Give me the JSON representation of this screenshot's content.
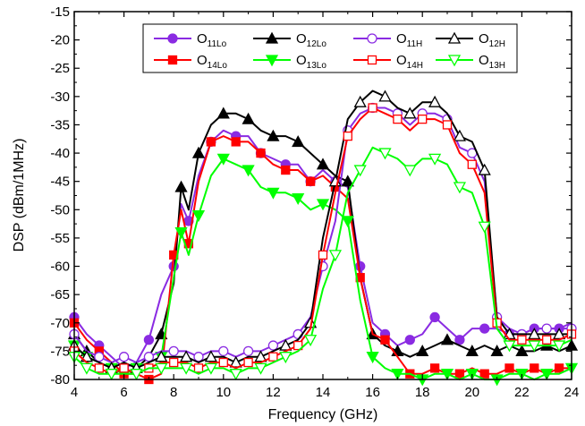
{
  "chart_data": {
    "type": "line",
    "xlabel": "Frequency (GHz)",
    "ylabel": "DSP (dBm/1MHz)",
    "xlim": [
      4,
      24
    ],
    "ylim": [
      -80,
      -15
    ],
    "xticks": [
      "4",
      "6",
      "8",
      "10",
      "12",
      "14",
      "16",
      "18",
      "20",
      "22",
      "24"
    ],
    "yticks": [
      "-15",
      "-20",
      "-25",
      "-30",
      "-35",
      "-40",
      "-45",
      "-50",
      "-55",
      "-60",
      "-65",
      "-70",
      "-75",
      "-80"
    ],
    "grid": false,
    "legend_position": "top-center",
    "series": [
      {
        "label_main": "O",
        "label_sub": "11Lo",
        "color": "#8a2be2",
        "marker": "circle",
        "filled": true,
        "x": [
          4,
          4.5,
          5,
          5.5,
          6,
          6.5,
          7,
          7.5,
          8,
          8.3,
          8.6,
          9,
          9.5,
          10,
          10.5,
          11,
          11.5,
          12,
          12.5,
          13,
          13.5,
          14,
          14.5,
          15,
          15.5,
          16,
          16.5,
          17,
          17.5,
          18,
          18.5,
          19,
          19.5,
          20,
          20.5,
          21,
          21.5,
          22,
          22.5,
          23,
          23.5,
          24
        ],
        "y": [
          -69,
          -72,
          -74,
          -76,
          -78,
          -77,
          -73,
          -65,
          -60,
          -49,
          -52,
          -44,
          -38,
          -36,
          -37,
          -37,
          -40,
          -41,
          -42,
          -42,
          -45,
          -43,
          -45,
          -46,
          -60,
          -70,
          -72,
          -74,
          -73,
          -72,
          -69,
          -71,
          -73,
          -71,
          -71,
          -71,
          -72,
          -72,
          -71,
          -71,
          -71,
          -70
        ]
      },
      {
        "label_main": "O",
        "label_sub": "12Lo",
        "color": "#000000",
        "marker": "triangle",
        "filled": true,
        "x": [
          4,
          4.5,
          5,
          5.5,
          6,
          6.5,
          7,
          7.5,
          8,
          8.3,
          8.6,
          9,
          9.5,
          10,
          10.5,
          11,
          11.5,
          12,
          12.5,
          13,
          13.5,
          14,
          14.5,
          15,
          15.5,
          16,
          16.5,
          17,
          17.5,
          18,
          18.5,
          19,
          19.5,
          20,
          20.5,
          21,
          21.5,
          22,
          22.5,
          23,
          23.5,
          24
        ],
        "y": [
          -72,
          -75,
          -77,
          -78,
          -79,
          -78,
          -76,
          -72,
          -63,
          -46,
          -50,
          -40,
          -35,
          -33,
          -33,
          -34,
          -36,
          -37,
          -37,
          -38,
          -40,
          -42,
          -44,
          -45,
          -62,
          -72,
          -74,
          -75,
          -76,
          -75,
          -74,
          -73,
          -74,
          -75,
          -74,
          -75,
          -74,
          -75,
          -75,
          -74,
          -75,
          -74
        ]
      },
      {
        "label_main": "O",
        "label_sub": "14Lo",
        "color": "#ff0000",
        "marker": "square",
        "filled": true,
        "x": [
          4,
          4.5,
          5,
          5.5,
          6,
          6.5,
          7,
          7.5,
          8,
          8.3,
          8.6,
          9,
          9.5,
          10,
          10.5,
          11,
          11.5,
          12,
          12.5,
          13,
          13.5,
          14,
          14.5,
          15,
          15.5,
          16,
          16.5,
          17,
          17.5,
          18,
          18.5,
          19,
          19.5,
          20,
          20.5,
          21,
          21.5,
          22,
          22.5,
          23,
          23.5,
          24
        ],
        "y": [
          -70,
          -73,
          -75,
          -77,
          -79,
          -79,
          -80,
          -79,
          -58,
          -50,
          -56,
          -45,
          -38,
          -37,
          -38,
          -38,
          -40,
          -42,
          -43,
          -43,
          -45,
          -44,
          -46,
          -48,
          -62,
          -72,
          -73,
          -76,
          -79,
          -79,
          -78,
          -79,
          -79,
          -78,
          -79,
          -79,
          -78,
          -79,
          -78,
          -79,
          -78,
          -78
        ]
      },
      {
        "label_main": "O",
        "label_sub": "13Lo",
        "color": "#00ff00",
        "marker": "triangle-down",
        "filled": true,
        "x": [
          4,
          4.5,
          5,
          5.5,
          6,
          6.5,
          7,
          7.5,
          8,
          8.3,
          8.6,
          9,
          9.5,
          10,
          10.5,
          11,
          11.5,
          12,
          12.5,
          13,
          13.5,
          14,
          14.5,
          15,
          15.5,
          16,
          16.5,
          17,
          17.5,
          18,
          18.5,
          19,
          19.5,
          20,
          20.5,
          21,
          21.5,
          22,
          22.5,
          23,
          23.5,
          24
        ],
        "y": [
          -74,
          -76,
          -77,
          -78,
          -79,
          -78,
          -77,
          -76,
          -62,
          -54,
          -58,
          -51,
          -44,
          -41,
          -42,
          -43,
          -46,
          -47,
          -47,
          -48,
          -50,
          -49,
          -50,
          -52,
          -66,
          -76,
          -78,
          -79,
          -79,
          -80,
          -79,
          -79,
          -80,
          -79,
          -80,
          -80,
          -79,
          -79,
          -80,
          -79,
          -79,
          -78
        ]
      },
      {
        "label_main": "O",
        "label_sub": "11H",
        "color": "#8a2be2",
        "marker": "circle",
        "filled": false,
        "x": [
          4,
          4.5,
          5,
          5.5,
          6,
          6.5,
          7,
          7.5,
          8,
          8.5,
          9,
          9.5,
          10,
          10.5,
          11,
          11.5,
          12,
          12.5,
          13,
          13.5,
          14,
          14.5,
          15,
          15.5,
          16,
          16.5,
          17,
          17.5,
          18,
          18.5,
          19,
          19.5,
          20,
          20.5,
          21,
          21.5,
          22,
          22.5,
          23,
          23.5,
          24
        ],
        "y": [
          -72,
          -75,
          -76,
          -77,
          -76,
          -77,
          -76,
          -75,
          -75,
          -75,
          -76,
          -75,
          -75,
          -76,
          -75,
          -75,
          -74,
          -73,
          -72,
          -69,
          -60,
          -52,
          -36,
          -33,
          -32,
          -32,
          -33,
          -35,
          -33,
          -33,
          -34,
          -39,
          -40,
          -45,
          -69,
          -71,
          -72,
          -71,
          -71,
          -71,
          -71
        ]
      },
      {
        "label_main": "O",
        "label_sub": "12H",
        "color": "#000000",
        "marker": "triangle",
        "filled": false,
        "x": [
          4,
          4.5,
          5,
          5.5,
          6,
          6.5,
          7,
          7.5,
          8,
          8.5,
          9,
          9.5,
          10,
          10.5,
          11,
          11.5,
          12,
          12.5,
          13,
          13.5,
          14,
          14.5,
          15,
          15.5,
          16,
          16.5,
          17,
          17.5,
          18,
          18.5,
          19,
          19.5,
          20,
          20.5,
          21,
          21.5,
          22,
          22.5,
          23,
          23.5,
          24
        ],
        "y": [
          -74,
          -76,
          -77,
          -78,
          -77,
          -78,
          -77,
          -76,
          -76,
          -76,
          -77,
          -76,
          -76,
          -77,
          -76,
          -76,
          -75,
          -74,
          -73,
          -70,
          -55,
          -45,
          -34,
          -31,
          -29,
          -30,
          -32,
          -33,
          -31,
          -31,
          -33,
          -37,
          -38,
          -43,
          -69,
          -72,
          -72,
          -72,
          -72,
          -72,
          -72
        ]
      },
      {
        "label_main": "O",
        "label_sub": "14H",
        "color": "#ff0000",
        "marker": "square",
        "filled": false,
        "x": [
          4,
          4.5,
          5,
          5.5,
          6,
          6.5,
          7,
          7.5,
          8,
          8.5,
          9,
          9.5,
          10,
          10.5,
          11,
          11.5,
          12,
          12.5,
          13,
          13.5,
          14,
          14.5,
          15,
          15.5,
          16,
          16.5,
          17,
          17.5,
          18,
          18.5,
          19,
          19.5,
          20,
          20.5,
          21,
          21.5,
          22,
          22.5,
          23,
          23.5,
          24
        ],
        "y": [
          -75,
          -77,
          -78,
          -79,
          -78,
          -79,
          -78,
          -77,
          -77,
          -77,
          -78,
          -77,
          -77,
          -78,
          -77,
          -77,
          -76,
          -75,
          -74,
          -71,
          -58,
          -47,
          -37,
          -34,
          -32,
          -33,
          -34,
          -36,
          -34,
          -34,
          -35,
          -40,
          -42,
          -47,
          -70,
          -73,
          -73,
          -73,
          -73,
          -73,
          -72
        ]
      },
      {
        "label_main": "O",
        "label_sub": "13H",
        "color": "#00ff00",
        "marker": "triangle-down",
        "filled": false,
        "x": [
          4,
          4.5,
          5,
          5.5,
          6,
          6.5,
          7,
          7.5,
          8,
          8.5,
          9,
          9.5,
          10,
          10.5,
          11,
          11.5,
          12,
          12.5,
          13,
          13.5,
          14,
          14.5,
          15,
          15.5,
          16,
          16.5,
          17,
          17.5,
          18,
          18.5,
          19,
          19.5,
          20,
          20.5,
          21,
          21.5,
          22,
          22.5,
          23,
          23.5,
          24
        ],
        "y": [
          -76,
          -78,
          -79,
          -79,
          -79,
          -79,
          -78,
          -78,
          -78,
          -78,
          -79,
          -78,
          -78,
          -79,
          -78,
          -78,
          -77,
          -76,
          -75,
          -73,
          -64,
          -58,
          -47,
          -43,
          -39,
          -40,
          -41,
          -43,
          -41,
          -41,
          -42,
          -46,
          -47,
          -53,
          -71,
          -74,
          -74,
          -74,
          -74,
          -74,
          -73
        ]
      }
    ]
  }
}
